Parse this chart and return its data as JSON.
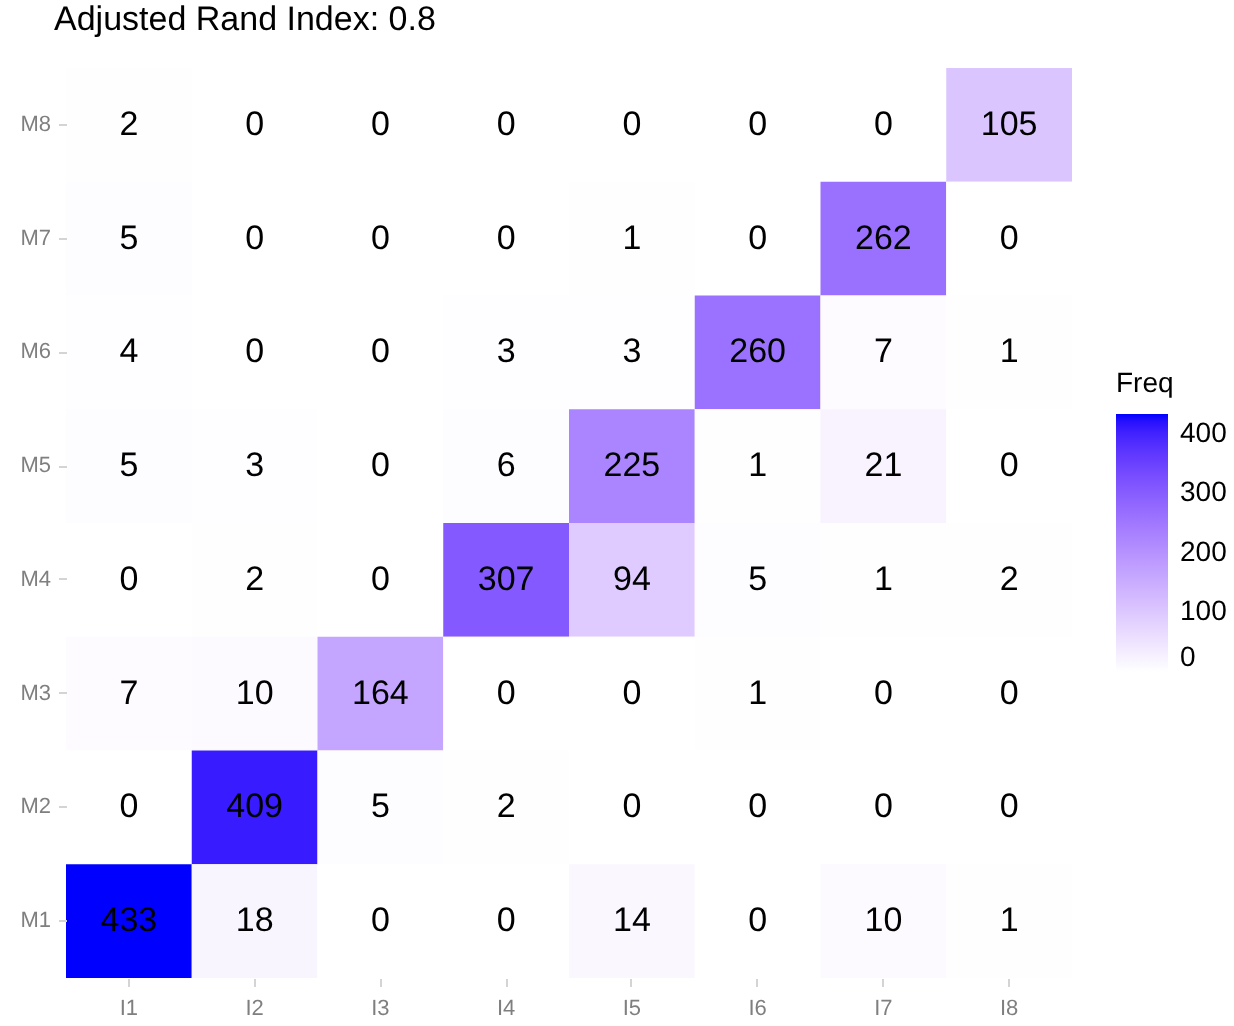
{
  "chart_data": {
    "type": "heatmap",
    "title": "Adjusted Rand Index: 0.8",
    "categories": [
      "I1",
      "I2",
      "I3",
      "I4",
      "I5",
      "I6",
      "I7",
      "I8"
    ],
    "y_categories": [
      "M8",
      "M7",
      "M6",
      "M5",
      "M4",
      "M3",
      "M2",
      "M1"
    ],
    "cells": [
      [
        2,
        0,
        0,
        0,
        0,
        0,
        0,
        105
      ],
      [
        5,
        0,
        0,
        0,
        1,
        0,
        262,
        0
      ],
      [
        4,
        0,
        0,
        3,
        3,
        260,
        7,
        1
      ],
      [
        5,
        3,
        0,
        6,
        225,
        1,
        21,
        0
      ],
      [
        0,
        2,
        0,
        307,
        94,
        5,
        1,
        2
      ],
      [
        7,
        10,
        164,
        0,
        0,
        1,
        0,
        0
      ],
      [
        0,
        409,
        5,
        2,
        0,
        0,
        0,
        0
      ],
      [
        433,
        18,
        0,
        0,
        14,
        0,
        10,
        1
      ]
    ],
    "clim": [
      0,
      433
    ],
    "cticks": [
      0,
      100,
      200,
      300,
      400
    ],
    "legend_title": "Freq",
    "data_labels": true
  }
}
